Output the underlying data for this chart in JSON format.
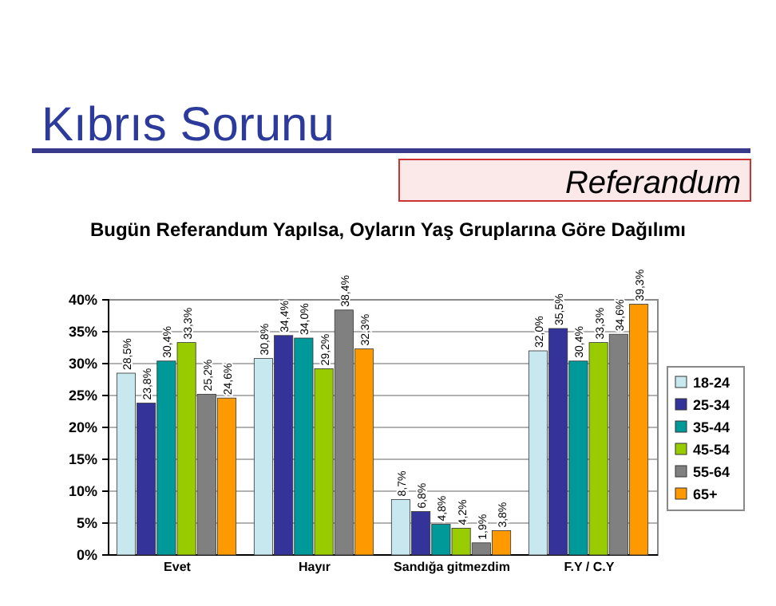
{
  "chart_data": {
    "type": "bar",
    "title": "Bugün Referandum Yapılsa, Oyların Yaş Gruplarına Göre Dağılımı",
    "annotations": [
      "Kıbrıs Sorunu",
      "Referandum"
    ],
    "categories": [
      "Evet",
      "Hayır",
      "Sandığa gitmezdim",
      "F.Y / C.Y"
    ],
    "series": [
      {
        "name": "18-24",
        "color": "#c6e8ee",
        "values": [
          28.5,
          30.8,
          8.7,
          32.0
        ],
        "value_labels": [
          "28,5%",
          "30,8%",
          "8,7%",
          "32,0%"
        ]
      },
      {
        "name": "25-34",
        "color": "#333399",
        "values": [
          23.8,
          34.4,
          6.8,
          35.5
        ],
        "value_labels": [
          "23,8%",
          "34,4%",
          "6,8%",
          "35,5%"
        ]
      },
      {
        "name": "35-44",
        "color": "#009999",
        "values": [
          30.4,
          34.0,
          4.8,
          30.4
        ],
        "value_labels": [
          "30,4%",
          "34,0%",
          "4,8%",
          "30,4%"
        ]
      },
      {
        "name": "45-54",
        "color": "#99cc00",
        "values": [
          33.3,
          29.2,
          4.2,
          33.3
        ],
        "value_labels": [
          "33,3%",
          "29,2%",
          "4,2%",
          "33,3%"
        ]
      },
      {
        "name": "55-64",
        "color": "#808080",
        "values": [
          25.2,
          38.4,
          1.9,
          34.6
        ],
        "value_labels": [
          "25,2%",
          "38,4%",
          "1,9%",
          "34,6%"
        ]
      },
      {
        "name": "65+",
        "color": "#ff9900",
        "values": [
          24.6,
          32.3,
          3.8,
          39.3
        ],
        "value_labels": [
          "24,6%",
          "32,3%",
          "3,8%",
          "39,3%"
        ]
      }
    ],
    "ylim": [
      0,
      40
    ],
    "yticks": [
      {
        "value": 0,
        "label": "0%"
      },
      {
        "value": 5,
        "label": "5%"
      },
      {
        "value": 10,
        "label": "10%"
      },
      {
        "value": 15,
        "label": "15%"
      },
      {
        "value": 20,
        "label": "20%"
      },
      {
        "value": 25,
        "label": "25%"
      },
      {
        "value": 30,
        "label": "30%"
      },
      {
        "value": 35,
        "label": "35%"
      },
      {
        "value": 40,
        "label": "40%"
      }
    ],
    "grid": "y",
    "legend": "right"
  }
}
